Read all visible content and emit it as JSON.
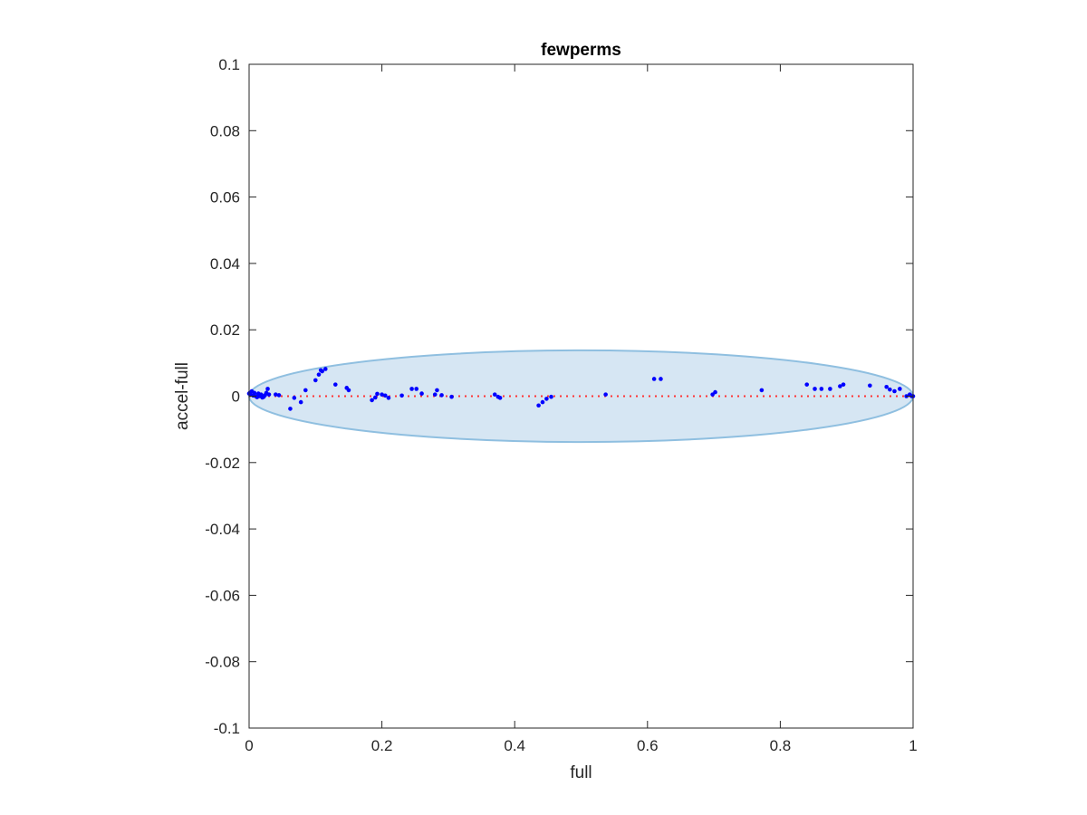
{
  "chart_data": {
    "type": "scatter",
    "title": "fewperms",
    "xlabel": "full",
    "ylabel": "accel-full",
    "xlim": [
      0,
      1
    ],
    "ylim": [
      -0.1,
      0.1
    ],
    "xticks": [
      0,
      0.2,
      0.4,
      0.6,
      0.8,
      1
    ],
    "xtick_labels": [
      "0",
      "0.2",
      "0.4",
      "0.6",
      "0.8",
      "1"
    ],
    "yticks": [
      -0.1,
      -0.08,
      -0.06,
      -0.04,
      -0.02,
      0,
      0.02,
      0.04,
      0.06,
      0.08,
      0.1
    ],
    "ytick_labels": [
      "-0.1",
      "-0.08",
      "-0.06",
      "-0.04",
      "-0.02",
      "0",
      "0.02",
      "0.04",
      "0.06",
      "0.08",
      "0.1"
    ],
    "grid": false,
    "reference_line": {
      "y": 0,
      "style": "dotted",
      "color": "#ff3333"
    },
    "ellipse": {
      "center": [
        0.5,
        0.0
      ],
      "semi_axis_x": 0.5,
      "semi_axis_y": 0.0138,
      "fill": "#d6e6f3",
      "stroke": "#8fbfe0"
    },
    "point_color": "#0000ff",
    "points": [
      [
        0.0,
        0.0008
      ],
      [
        0.001,
        0.001
      ],
      [
        0.002,
        0.0005
      ],
      [
        0.004,
        0.0015
      ],
      [
        0.006,
        0.0002
      ],
      [
        0.008,
        0.001
      ],
      [
        0.01,
        0.0
      ],
      [
        0.012,
        -0.0003
      ],
      [
        0.014,
        0.0008
      ],
      [
        0.016,
        0.0
      ],
      [
        0.018,
        0.0005
      ],
      [
        0.02,
        -0.0004
      ],
      [
        0.022,
        -0.0002
      ],
      [
        0.024,
        0.0003
      ],
      [
        0.026,
        0.001
      ],
      [
        0.028,
        0.0022
      ],
      [
        0.03,
        0.0005
      ],
      [
        0.04,
        0.0005
      ],
      [
        0.045,
        0.0003
      ],
      [
        0.062,
        -0.0038
      ],
      [
        0.068,
        -0.0005
      ],
      [
        0.078,
        -0.0018
      ],
      [
        0.085,
        0.0018
      ],
      [
        0.1,
        0.0048
      ],
      [
        0.105,
        0.0065
      ],
      [
        0.108,
        0.0078
      ],
      [
        0.11,
        0.0075
      ],
      [
        0.115,
        0.0082
      ],
      [
        0.13,
        0.0035
      ],
      [
        0.147,
        0.0025
      ],
      [
        0.15,
        0.0018
      ],
      [
        0.185,
        -0.0012
      ],
      [
        0.19,
        -0.0004
      ],
      [
        0.193,
        0.0007
      ],
      [
        0.2,
        0.0005
      ],
      [
        0.205,
        0.0002
      ],
      [
        0.21,
        -0.0005
      ],
      [
        0.23,
        0.0002
      ],
      [
        0.245,
        0.0022
      ],
      [
        0.252,
        0.0022
      ],
      [
        0.26,
        0.0008
      ],
      [
        0.28,
        0.0005
      ],
      [
        0.283,
        0.0018
      ],
      [
        0.29,
        0.0003
      ],
      [
        0.305,
        -0.0002
      ],
      [
        0.37,
        0.0005
      ],
      [
        0.375,
        -0.0002
      ],
      [
        0.378,
        -0.0005
      ],
      [
        0.436,
        -0.0028
      ],
      [
        0.442,
        -0.0018
      ],
      [
        0.448,
        -0.0008
      ],
      [
        0.455,
        -0.0002
      ],
      [
        0.537,
        0.0005
      ],
      [
        0.61,
        0.0052
      ],
      [
        0.62,
        0.0052
      ],
      [
        0.698,
        0.0005
      ],
      [
        0.702,
        0.0012
      ],
      [
        0.772,
        0.0018
      ],
      [
        0.84,
        0.0035
      ],
      [
        0.852,
        0.0022
      ],
      [
        0.862,
        0.0022
      ],
      [
        0.875,
        0.0022
      ],
      [
        0.89,
        0.003
      ],
      [
        0.895,
        0.0035
      ],
      [
        0.935,
        0.0032
      ],
      [
        0.96,
        0.0028
      ],
      [
        0.965,
        0.002
      ],
      [
        0.972,
        0.0015
      ],
      [
        0.98,
        0.0022
      ],
      [
        0.99,
        0.0
      ],
      [
        0.995,
        0.0005
      ],
      [
        0.998,
        0.0
      ],
      [
        1.0,
        0.0
      ]
    ]
  }
}
